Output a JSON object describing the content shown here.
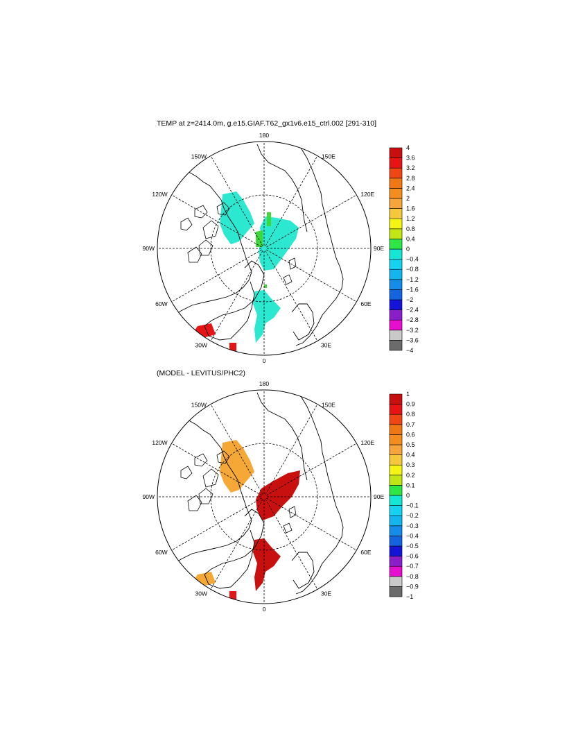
{
  "titles": {
    "top": "TEMP at z=2414.0m, g.e15.GIAF.T62_gx1v6.e15_ctrl.002 [291-310]",
    "bottom": "(MODEL - LEVITUS/PHC2)"
  },
  "longitude_labels": [
    "180",
    "150E",
    "120E",
    "90E",
    "60E",
    "30E",
    "0",
    "30W",
    "60W",
    "90W",
    "120W",
    "150W"
  ],
  "colorbars": {
    "top": {
      "colors": [
        "#6b6b6b",
        "#c9c9c9",
        "#e60fcf",
        "#8a1fc9",
        "#1414d6",
        "#1464e0",
        "#148ce8",
        "#14b4ee",
        "#14d2f0",
        "#14e8d4",
        "#2ee646",
        "#c2e614",
        "#f5f514",
        "#f5c83c",
        "#f5a53c",
        "#f58c1e",
        "#f07814",
        "#f04614",
        "#e61414",
        "#c80f0f"
      ],
      "labels": [
        "4",
        "3.6",
        "3.2",
        "2.8",
        "2.4",
        "2",
        "1.6",
        "1.2",
        "0.8",
        "0.4",
        "0",
        "−0.4",
        "−0.8",
        "−1.2",
        "−1.6",
        "−2",
        "−2.4",
        "−2.8",
        "−3.2",
        "−3.6",
        "−4"
      ]
    },
    "bottom": {
      "colors": [
        "#6b6b6b",
        "#c9c9c9",
        "#e60fcf",
        "#8a1fc9",
        "#1414d6",
        "#1464e0",
        "#148ce8",
        "#14b4ee",
        "#14d2f0",
        "#14e8d4",
        "#2ee646",
        "#c2e614",
        "#f5f514",
        "#f5c83c",
        "#f5a53c",
        "#f58c1e",
        "#f07814",
        "#f04614",
        "#e61414",
        "#c80f0f"
      ],
      "labels": [
        "1",
        "0.9",
        "0.8",
        "0.7",
        "0.6",
        "0.5",
        "0.4",
        "0.3",
        "0.2",
        "0.1",
        "0",
        "−0.1",
        "−0.2",
        "−0.3",
        "−0.4",
        "−0.5",
        "−0.6",
        "−0.7",
        "−0.8",
        "−0.9",
        "−1"
      ]
    }
  },
  "field_colors": {
    "cyan": "#2de8d0",
    "green": "#3ed838",
    "orange": "#f5a835",
    "dark_red": "#c8100f",
    "red": "#e61414"
  }
}
